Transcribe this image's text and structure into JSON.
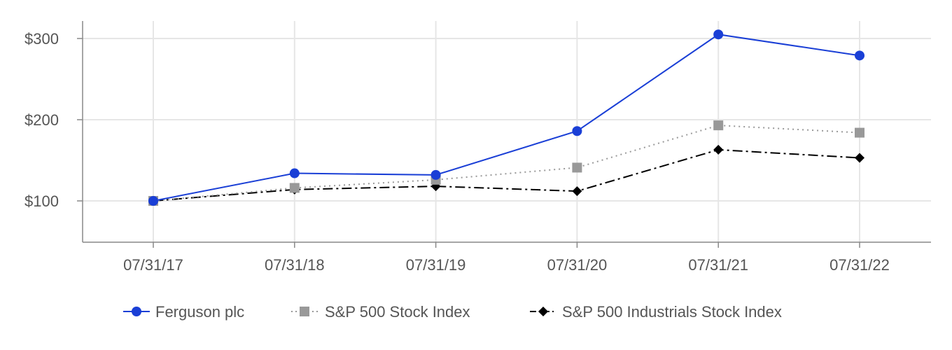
{
  "chart_data": {
    "type": "line",
    "categories": [
      "07/31/17",
      "07/31/18",
      "07/31/19",
      "07/31/20",
      "07/31/21",
      "07/31/22"
    ],
    "y_ticks": [
      {
        "value": 100,
        "label": "$100"
      },
      {
        "value": 200,
        "label": "$200"
      },
      {
        "value": 300,
        "label": "$300"
      }
    ],
    "ylim": [
      50,
      325
    ],
    "grid": true,
    "legend_position": "bottom",
    "series": [
      {
        "name": "Ferguson plc",
        "values": [
          100,
          134,
          132,
          186,
          305,
          279
        ],
        "color": "#1a3fd6",
        "marker": "circle",
        "line_style": "solid"
      },
      {
        "name": "S&P 500 Stock Index",
        "values": [
          100,
          116,
          126,
          141,
          193,
          184
        ],
        "color": "#999999",
        "marker": "square",
        "line_style": "dotted"
      },
      {
        "name": "S&P 500 Industrials Stock Index",
        "values": [
          100,
          114,
          118,
          112,
          163,
          153
        ],
        "color": "#000000",
        "marker": "diamond",
        "line_style": "dashdot"
      }
    ]
  }
}
